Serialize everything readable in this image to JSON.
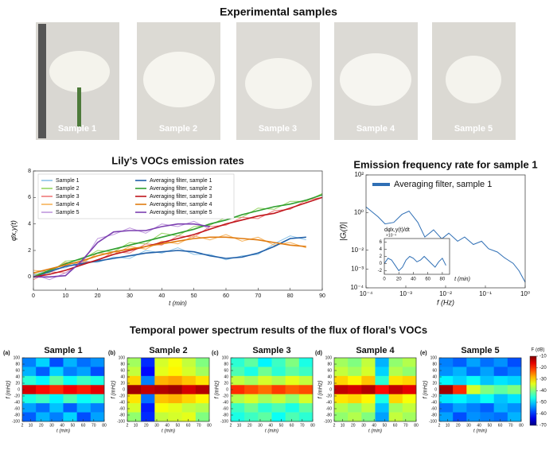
{
  "samples": {
    "title": "Experimental samples",
    "labels": [
      "Sample 1",
      "Sample 2",
      "Sample 3",
      "Sample 4",
      "Sample 5"
    ]
  },
  "spectrum_section": {
    "title": "Temporal power spectrum results of the flux of floral’s VOCs",
    "colorbar": {
      "label": "F (dB)",
      "lim": [
        -70,
        -10
      ],
      "ticks": [
        -70,
        -60,
        -50,
        -40,
        -30,
        -20,
        -10
      ]
    }
  },
  "chart_data": [
    {
      "type": "line",
      "title": "Lily’s VOCs emission rates",
      "xlabel": "t (min)",
      "ylabel": "φ̄x,y(t)",
      "legend": "upper left",
      "x": [
        0,
        5,
        10,
        15,
        20,
        25,
        30,
        35,
        40,
        45,
        50,
        55,
        60,
        65,
        70,
        75,
        80,
        85,
        90
      ],
      "xlim": [
        0,
        90
      ],
      "xticks": [
        0,
        10,
        20,
        30,
        40,
        50,
        60,
        70,
        80,
        90
      ],
      "ylim": [
        -1,
        8
      ],
      "yticks": [
        0,
        2,
        4,
        6,
        8
      ],
      "series": [
        {
          "name": "Sample 1",
          "color": "#8cc3e8",
          "values": [
            0.1,
            0.6,
            0.7,
            1.2,
            1.1,
            1.5,
            1.4,
            2.0,
            1.8,
            2.2,
            1.7,
            1.7,
            1.3,
            1.6,
            1.7,
            2.5,
            3.1,
            2.8,
            null
          ]
        },
        {
          "name": "Sample 2",
          "color": "#95d562",
          "values": [
            0.2,
            0.3,
            1.2,
            1.3,
            2.0,
            1.9,
            2.6,
            2.5,
            3.3,
            3.1,
            3.8,
            3.9,
            4.5,
            4.5,
            5.2,
            5.1,
            5.7,
            5.7,
            6.3
          ]
        },
        {
          "name": "Sample 3",
          "color": "#ee7b7b",
          "values": [
            -0.2,
            0.4,
            0.3,
            1.1,
            1.2,
            1.9,
            1.8,
            2.5,
            2.4,
            3.1,
            3.0,
            3.8,
            3.9,
            4.5,
            4.4,
            5.0,
            5.1,
            5.8,
            6.0
          ]
        },
        {
          "name": "Sample 4",
          "color": "#f6b25a",
          "values": [
            0.5,
            0.4,
            1.1,
            1.0,
            1.8,
            1.7,
            2.3,
            2.1,
            2.7,
            2.5,
            3.1,
            2.8,
            3.2,
            2.7,
            3.0,
            2.4,
            2.6,
            2.2,
            null
          ]
        },
        {
          "name": "Sample 5",
          "color": "#bf97de",
          "values": [
            0.2,
            -0.2,
            0.3,
            1.0,
            2.9,
            3.2,
            3.7,
            3.3,
            4.0,
            3.8,
            4.2,
            3.6,
            null,
            null,
            null,
            null,
            null,
            null,
            null
          ]
        },
        {
          "name": "Averaging filter, sample 1",
          "color": "#1f5fa8",
          "values": [
            0,
            0.4,
            0.8,
            1.0,
            1.2,
            1.4,
            1.6,
            1.8,
            1.9,
            2.0,
            1.9,
            1.6,
            1.4,
            1.5,
            1.8,
            2.3,
            2.9,
            3.0,
            null
          ]
        },
        {
          "name": "Averaging filter, sample 2",
          "color": "#2e9e2e",
          "values": [
            0,
            0.5,
            1.0,
            1.4,
            1.8,
            2.1,
            2.4,
            2.7,
            3.0,
            3.3,
            3.6,
            4.0,
            4.3,
            4.7,
            5.0,
            5.3,
            5.5,
            5.8,
            6.2
          ]
        },
        {
          "name": "Averaging filter, sample 3",
          "color": "#c0161c",
          "values": [
            0,
            0.2,
            0.5,
            0.9,
            1.3,
            1.7,
            2.0,
            2.3,
            2.6,
            2.9,
            3.2,
            3.6,
            4.0,
            4.3,
            4.6,
            4.8,
            5.2,
            5.6,
            6.0
          ]
        },
        {
          "name": "Averaging filter, sample 4",
          "color": "#e07b10",
          "values": [
            0.3,
            0.6,
            0.9,
            1.2,
            1.6,
            1.9,
            2.1,
            2.3,
            2.5,
            2.7,
            2.9,
            3.0,
            3.0,
            2.9,
            2.8,
            2.6,
            2.4,
            2.3,
            null
          ]
        },
        {
          "name": "Averaging filter, sample 5",
          "color": "#7b3fb0",
          "values": [
            0,
            0,
            0.1,
            1.2,
            2.6,
            3.4,
            3.5,
            3.5,
            3.8,
            4.0,
            4.0,
            3.8,
            null,
            null,
            null,
            null,
            null,
            null,
            null
          ]
        }
      ]
    },
    {
      "type": "line",
      "title": "Emission frequency rate for sample 1",
      "xlabel": "f (Hz)",
      "ylabel": "|Gᵢ(f)|",
      "legend": "upper right",
      "xscale": "log",
      "yscale": "log",
      "x": [
        0.0001,
        0.0002,
        0.0003,
        0.0005,
        0.0008,
        0.0012,
        0.002,
        0.003,
        0.005,
        0.008,
        0.012,
        0.02,
        0.03,
        0.05,
        0.08,
        0.12,
        0.2,
        0.3,
        0.5,
        0.7,
        1
      ],
      "xlim": [
        0.0001,
        1
      ],
      "ylim": [
        0.0001,
        100
      ],
      "xticks": [
        {
          "value": 0.0001,
          "label": "10⁻⁴"
        },
        {
          "value": 0.001,
          "label": "10⁻³"
        },
        {
          "value": 0.01,
          "label": "10⁻²"
        },
        {
          "value": 0.1,
          "label": "10⁻¹"
        },
        {
          "value": 1,
          "label": "10⁰"
        }
      ],
      "yticks": [
        {
          "value": 0.0001,
          "label": "10⁻⁴"
        },
        {
          "value": 0.001,
          "label": "10⁻³"
        },
        {
          "value": 0.01,
          "label": "10⁻²"
        },
        {
          "value": 1,
          "label": "10⁰"
        },
        {
          "value": 100,
          "label": "10²"
        }
      ],
      "series": [
        {
          "name": "Averaging filter, sample 1",
          "color": "#2f6fb5",
          "values": [
            2,
            0.6,
            0.25,
            0.3,
            0.8,
            1.2,
            0.3,
            0.05,
            0.12,
            0.04,
            0.08,
            0.03,
            0.05,
            0.02,
            0.03,
            0.012,
            0.008,
            0.004,
            0.002,
            0.0008,
            0.0002
          ]
        }
      ]
    },
    {
      "type": "line",
      "xlabel": "t (min)",
      "ylabel": "dφ̄x,y(t)/dt",
      "offset_label": "×10⁻³",
      "x": [
        0,
        5,
        10,
        15,
        20,
        25,
        30,
        35,
        40,
        45,
        50,
        55,
        60,
        65,
        70,
        75,
        80,
        85
      ],
      "xlim": [
        0,
        90
      ],
      "xticks": [
        0,
        20,
        40,
        60,
        80
      ],
      "ylim": [
        -3,
        7
      ],
      "yticks": [
        -2,
        0,
        2,
        4,
        6
      ],
      "series": [
        {
          "name": "Averaging filter, sample 1",
          "color": "#2f6fb5",
          "values": [
            0,
            1.5,
            1,
            -0.5,
            -2,
            -1,
            1,
            2,
            1.5,
            0.5,
            1,
            2,
            1,
            0,
            -1,
            0.5,
            1.5,
            -0.5
          ]
        }
      ]
    },
    {
      "type": "heatmap",
      "panel_label": "(a)",
      "title": "Sample 1",
      "xlabel": "t (min)",
      "ylabel": "f (mHz)",
      "xlim": [
        2,
        80
      ],
      "xticks": [
        2,
        10,
        20,
        30,
        40,
        50,
        60,
        70,
        80
      ],
      "ylim": [
        -100,
        100
      ],
      "yticks": [
        -100,
        -80,
        -60,
        -40,
        -20,
        0,
        20,
        40,
        60,
        80,
        100
      ],
      "z": [
        [
          -55,
          -50,
          -58,
          -52,
          -56,
          -54
        ],
        [
          -52,
          -57,
          -50,
          -55,
          -53,
          -58
        ],
        [
          -45,
          -48,
          -42,
          -47,
          -44,
          -46
        ],
        [
          -15,
          -18,
          -20,
          -17,
          -19,
          -16
        ],
        [
          -46,
          -44,
          -48,
          -43,
          -47,
          -45
        ],
        [
          -53,
          -56,
          -51,
          -57,
          -52,
          -55
        ],
        [
          -57,
          -52,
          -55,
          -50,
          -58,
          -53
        ]
      ]
    },
    {
      "type": "heatmap",
      "panel_label": "(b)",
      "title": "Sample 2",
      "xlabel": "t (min)",
      "ylabel": "f (mHz)",
      "xlim": [
        2,
        80
      ],
      "xticks": [
        2,
        10,
        20,
        30,
        40,
        50,
        60,
        70,
        80
      ],
      "ylim": [
        -100,
        100
      ],
      "yticks": [
        -100,
        -80,
        -60,
        -40,
        -20,
        0,
        20,
        40,
        60,
        80,
        100
      ],
      "z": [
        [
          -38,
          -60,
          -35,
          -33,
          -36,
          -40
        ],
        [
          -36,
          -62,
          -34,
          -32,
          -35,
          -38
        ],
        [
          -30,
          -55,
          -28,
          -27,
          -29,
          -31
        ],
        [
          -12,
          -14,
          -13,
          -12,
          -15,
          -13
        ],
        [
          -31,
          -56,
          -29,
          -28,
          -30,
          -32
        ],
        [
          -35,
          -61,
          -33,
          -34,
          -36,
          -37
        ],
        [
          -39,
          -60,
          -36,
          -35,
          -34,
          -40
        ]
      ]
    },
    {
      "type": "heatmap",
      "panel_label": "(c)",
      "title": "Sample 3",
      "xlabel": "t (min)",
      "ylabel": "f (mHz)",
      "xlim": [
        2,
        80
      ],
      "xticks": [
        2,
        10,
        20,
        30,
        40,
        50,
        60,
        70,
        80
      ],
      "ylim": [
        -100,
        100
      ],
      "yticks": [
        -100,
        -80,
        -60,
        -40,
        -20,
        0,
        20,
        40,
        60,
        80,
        100
      ],
      "z": [
        [
          -45,
          -42,
          -48,
          -44,
          -40,
          -46
        ],
        [
          -43,
          -46,
          -41,
          -45,
          -42,
          -44
        ],
        [
          -36,
          -38,
          -35,
          -37,
          -34,
          -36
        ],
        [
          -20,
          -22,
          -24,
          -21,
          -23,
          -22
        ],
        [
          -37,
          -35,
          -38,
          -36,
          -39,
          -35
        ],
        [
          -44,
          -41,
          -45,
          -43,
          -46,
          -42
        ],
        [
          -46,
          -44,
          -42,
          -47,
          -43,
          -45
        ]
      ]
    },
    {
      "type": "heatmap",
      "panel_label": "(d)",
      "title": "Sample 4",
      "xlabel": "t (min)",
      "ylabel": "f (mHz)",
      "xlim": [
        2,
        80
      ],
      "xticks": [
        2,
        10,
        20,
        30,
        40,
        50,
        60,
        70,
        80
      ],
      "ylim": [
        -100,
        100
      ],
      "yticks": [
        -100,
        -80,
        -60,
        -40,
        -20,
        0,
        20,
        40,
        60,
        80,
        100
      ],
      "z": [
        [
          -38,
          -40,
          -36,
          -52,
          -39,
          -37
        ],
        [
          -36,
          -38,
          -35,
          -50,
          -37,
          -39
        ],
        [
          -30,
          -32,
          -29,
          -45,
          -31,
          -30
        ],
        [
          -14,
          -15,
          -13,
          -18,
          -14,
          -16
        ],
        [
          -31,
          -30,
          -32,
          -46,
          -30,
          -33
        ],
        [
          -37,
          -39,
          -36,
          -51,
          -38,
          -36
        ],
        [
          -39,
          -37,
          -40,
          -53,
          -36,
          -38
        ]
      ]
    },
    {
      "type": "heatmap",
      "panel_label": "(e)",
      "title": "Sample 5",
      "xlabel": "t (min)",
      "ylabel": "f (mHz)",
      "xlim": [
        2,
        80
      ],
      "xticks": [
        2,
        10,
        20,
        30,
        40,
        50,
        60,
        70,
        80
      ],
      "ylim": [
        -100,
        100
      ],
      "yticks": [
        -100,
        -80,
        -60,
        -40,
        -20,
        0,
        20,
        40,
        60,
        80,
        100
      ],
      "z": [
        [
          -55,
          -57,
          -53,
          -56,
          -54,
          -58
        ],
        [
          -54,
          -52,
          -56,
          -53,
          -57,
          -55
        ],
        [
          -48,
          -50,
          -47,
          -51,
          -49,
          -50
        ],
        [
          -12,
          -20,
          -35,
          -40,
          -42,
          -40
        ],
        [
          -49,
          -48,
          -50,
          -47,
          -51,
          -49
        ],
        [
          -56,
          -53,
          -55,
          -57,
          -52,
          -54
        ],
        [
          -53,
          -58,
          -54,
          -55,
          -56,
          -52
        ]
      ]
    }
  ]
}
